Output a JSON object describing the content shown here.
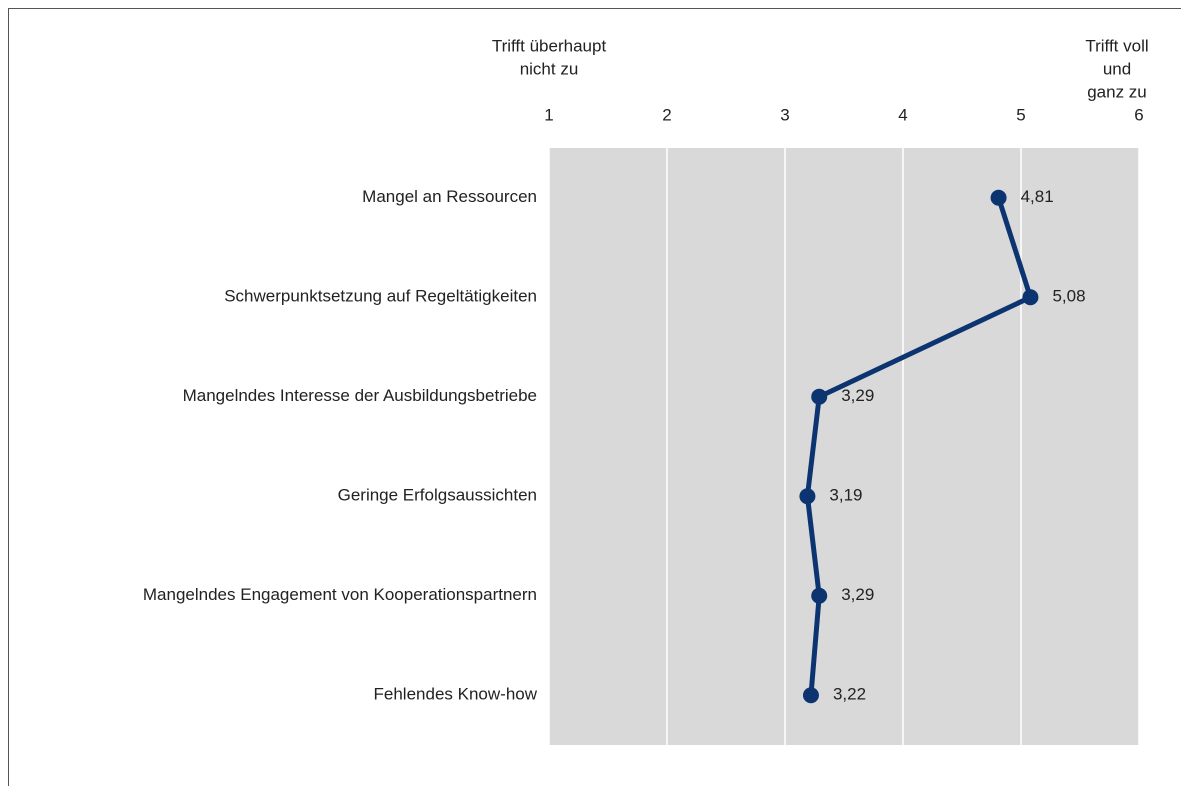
{
  "chart_data": {
    "type": "line",
    "orientation": "horizontal",
    "annotations": [
      {
        "lines": [
          "Trifft überhaupt",
          "nicht zu"
        ],
        "position": "left"
      },
      {
        "lines": [
          "Trifft voll",
          "und",
          "ganz zu"
        ],
        "position": "right"
      }
    ],
    "categories": [
      "Mangel an Ressourcen",
      "Schwerpunktsetzung auf Regeltätigkeiten",
      "Mangelndes Interesse der Ausbildungsbetriebe",
      "Geringe Erfolgsaussichten",
      "Mangelndes Engagement von Kooperationspartnern",
      "Fehlendes Know-how"
    ],
    "values": [
      4.81,
      5.08,
      3.29,
      3.19,
      3.29,
      3.22
    ],
    "value_labels": [
      "4,81",
      "5,08",
      "3,29",
      "3,19",
      "3,29",
      "3,22"
    ],
    "color": "#0c3470",
    "xlim": [
      1,
      6
    ],
    "xticks": [
      1,
      2,
      3,
      4,
      5,
      6
    ],
    "grid": true
  }
}
